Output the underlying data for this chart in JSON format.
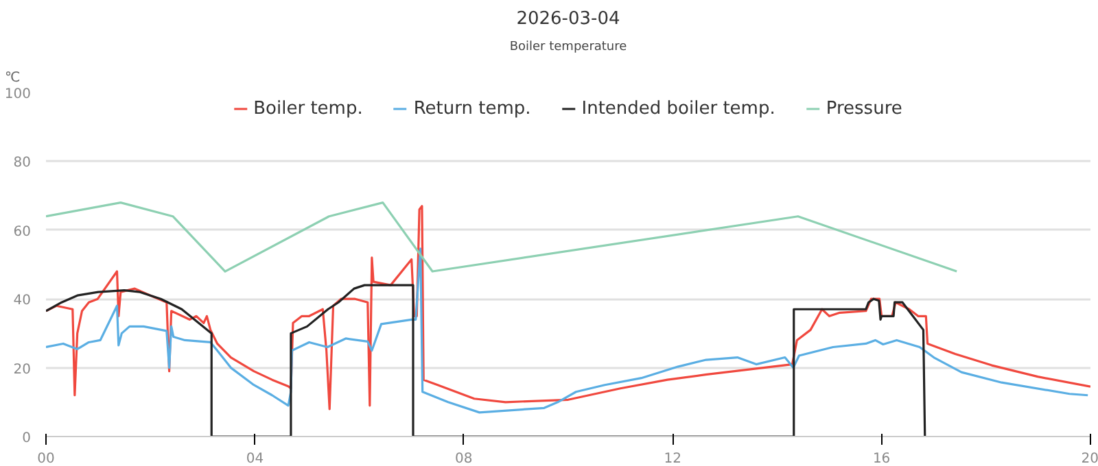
{
  "chart_data": {
    "type": "line",
    "title": "Boiler temperature",
    "subtitle": "2026-03-04",
    "ylabel": "℃",
    "xlim": [
      0,
      20
    ],
    "ylim": [
      0,
      100
    ],
    "xticks": [
      {
        "value": 0,
        "label": "00"
      },
      {
        "value": 4,
        "label": "04"
      },
      {
        "value": 8,
        "label": "08"
      },
      {
        "value": 12,
        "label": "12"
      },
      {
        "value": 16,
        "label": "16"
      },
      {
        "value": 20,
        "label": "20"
      }
    ],
    "yticks": [
      0,
      20,
      40,
      60,
      80,
      100
    ],
    "grid": "y",
    "legend": "top",
    "marker": "none",
    "line_style": "solid",
    "series": [
      {
        "name": "Boiler temp.",
        "color": "#f0483e",
        "x": [
          0,
          0.2,
          0.51,
          0.55,
          0.6,
          0.69,
          0.82,
          0.99,
          1.36,
          1.39,
          1.43,
          1.7,
          2.0,
          2.31,
          2.36,
          2.4,
          2.75,
          2.88,
          3.02,
          3.08,
          3.15,
          3.28,
          3.54,
          3.98,
          4.33,
          4.64,
          4.69,
          4.73,
          4.9,
          5.04,
          5.3,
          5.37,
          5.43,
          5.5,
          5.65,
          5.92,
          6.16,
          6.2,
          6.24,
          6.27,
          6.6,
          7.0,
          7.05,
          7.1,
          7.15,
          7.2,
          7.23,
          7.5,
          8.2,
          8.8,
          10.0,
          11.0,
          11.9,
          12.63,
          14.29,
          14.38,
          14.64,
          14.86,
          15.0,
          15.2,
          15.7,
          15.8,
          15.96,
          16.0,
          16.2,
          16.27,
          16.53,
          16.7,
          16.85,
          16.88,
          17.41,
          18.11,
          18.99,
          20.0
        ],
        "values": [
          36.5,
          38,
          37,
          12,
          30,
          36.5,
          39,
          40,
          48,
          35,
          42,
          43,
          41,
          39,
          19,
          36.5,
          34,
          35,
          33,
          35,
          31,
          27,
          23,
          19,
          16.5,
          14.6,
          14,
          33,
          35,
          35,
          37,
          25,
          8,
          38,
          40,
          40,
          39,
          9,
          52,
          45,
          44,
          51.5,
          35,
          35,
          66,
          67,
          16.5,
          15,
          11,
          10,
          10.7,
          14,
          16.5,
          18,
          21,
          28,
          31,
          37,
          35,
          36,
          36.5,
          40,
          40,
          35,
          35,
          39,
          37,
          35,
          35,
          27,
          24,
          20.7,
          17.4,
          14.5
        ]
      },
      {
        "name": "Return temp.",
        "color": "#5aaee3",
        "x": [
          0,
          0.33,
          0.6,
          0.82,
          1.04,
          1.36,
          1.39,
          1.45,
          1.6,
          1.87,
          2.31,
          2.36,
          2.4,
          2.44,
          2.66,
          3.15,
          3.28,
          3.54,
          3.98,
          4.33,
          4.64,
          4.69,
          4.71,
          5.04,
          5.39,
          5.74,
          6.16,
          6.24,
          6.42,
          7.0,
          7.08,
          7.17,
          7.21,
          7.7,
          8.3,
          9.54,
          9.8,
          10.15,
          10.7,
          11.4,
          12.1,
          12.64,
          13.24,
          13.6,
          14.15,
          14.31,
          14.42,
          15.07,
          15.7,
          15.88,
          16.03,
          16.29,
          16.73,
          17.0,
          17.53,
          18.3,
          19.6,
          19.95
        ],
        "values": [
          26,
          27,
          25.4,
          27.4,
          28,
          38,
          26.5,
          30,
          32,
          32,
          30.7,
          20,
          32,
          29,
          28,
          27.4,
          25,
          20,
          15,
          12,
          9,
          13,
          25,
          27.4,
          26,
          28.5,
          27.6,
          25,
          32.7,
          34,
          34,
          54.6,
          13,
          10,
          7,
          8.3,
          10,
          13,
          15,
          17,
          20.3,
          22.3,
          23,
          21,
          23,
          20,
          23.5,
          26,
          27,
          28,
          26.8,
          28,
          26,
          23,
          18.7,
          15.7,
          12.4,
          12
        ]
      },
      {
        "name": "Intended boiler temp.",
        "color": "#222222",
        "x": [
          0,
          0.3,
          0.6,
          1.0,
          1.5,
          1.8,
          2.2,
          2.6,
          3.17,
          3.17,
          4.69,
          4.69,
          5.0,
          5.4,
          5.6,
          5.9,
          6.1,
          7.03,
          7.03,
          14.32,
          14.32,
          15.7,
          15.75,
          15.85,
          15.95,
          15.98,
          16.0,
          16.23,
          16.25,
          16.4,
          16.6,
          16.8,
          16.83
        ],
        "values": [
          36.5,
          39,
          41,
          42,
          42.5,
          42,
          40,
          37,
          30,
          0,
          0,
          30,
          32,
          37,
          39,
          43,
          44,
          44,
          0,
          0,
          37,
          37,
          39,
          40,
          39.5,
          34,
          35,
          35,
          39,
          39,
          35,
          31,
          0
        ]
      },
      {
        "name": "Pressure",
        "color": "#8dd0b2",
        "x": [
          0,
          1.43,
          2.43,
          3.43,
          5.42,
          6.45,
          7.4,
          14.4,
          17.44
        ],
        "values": [
          64,
          68,
          64,
          48,
          64,
          68,
          48,
          64,
          48
        ]
      }
    ]
  }
}
